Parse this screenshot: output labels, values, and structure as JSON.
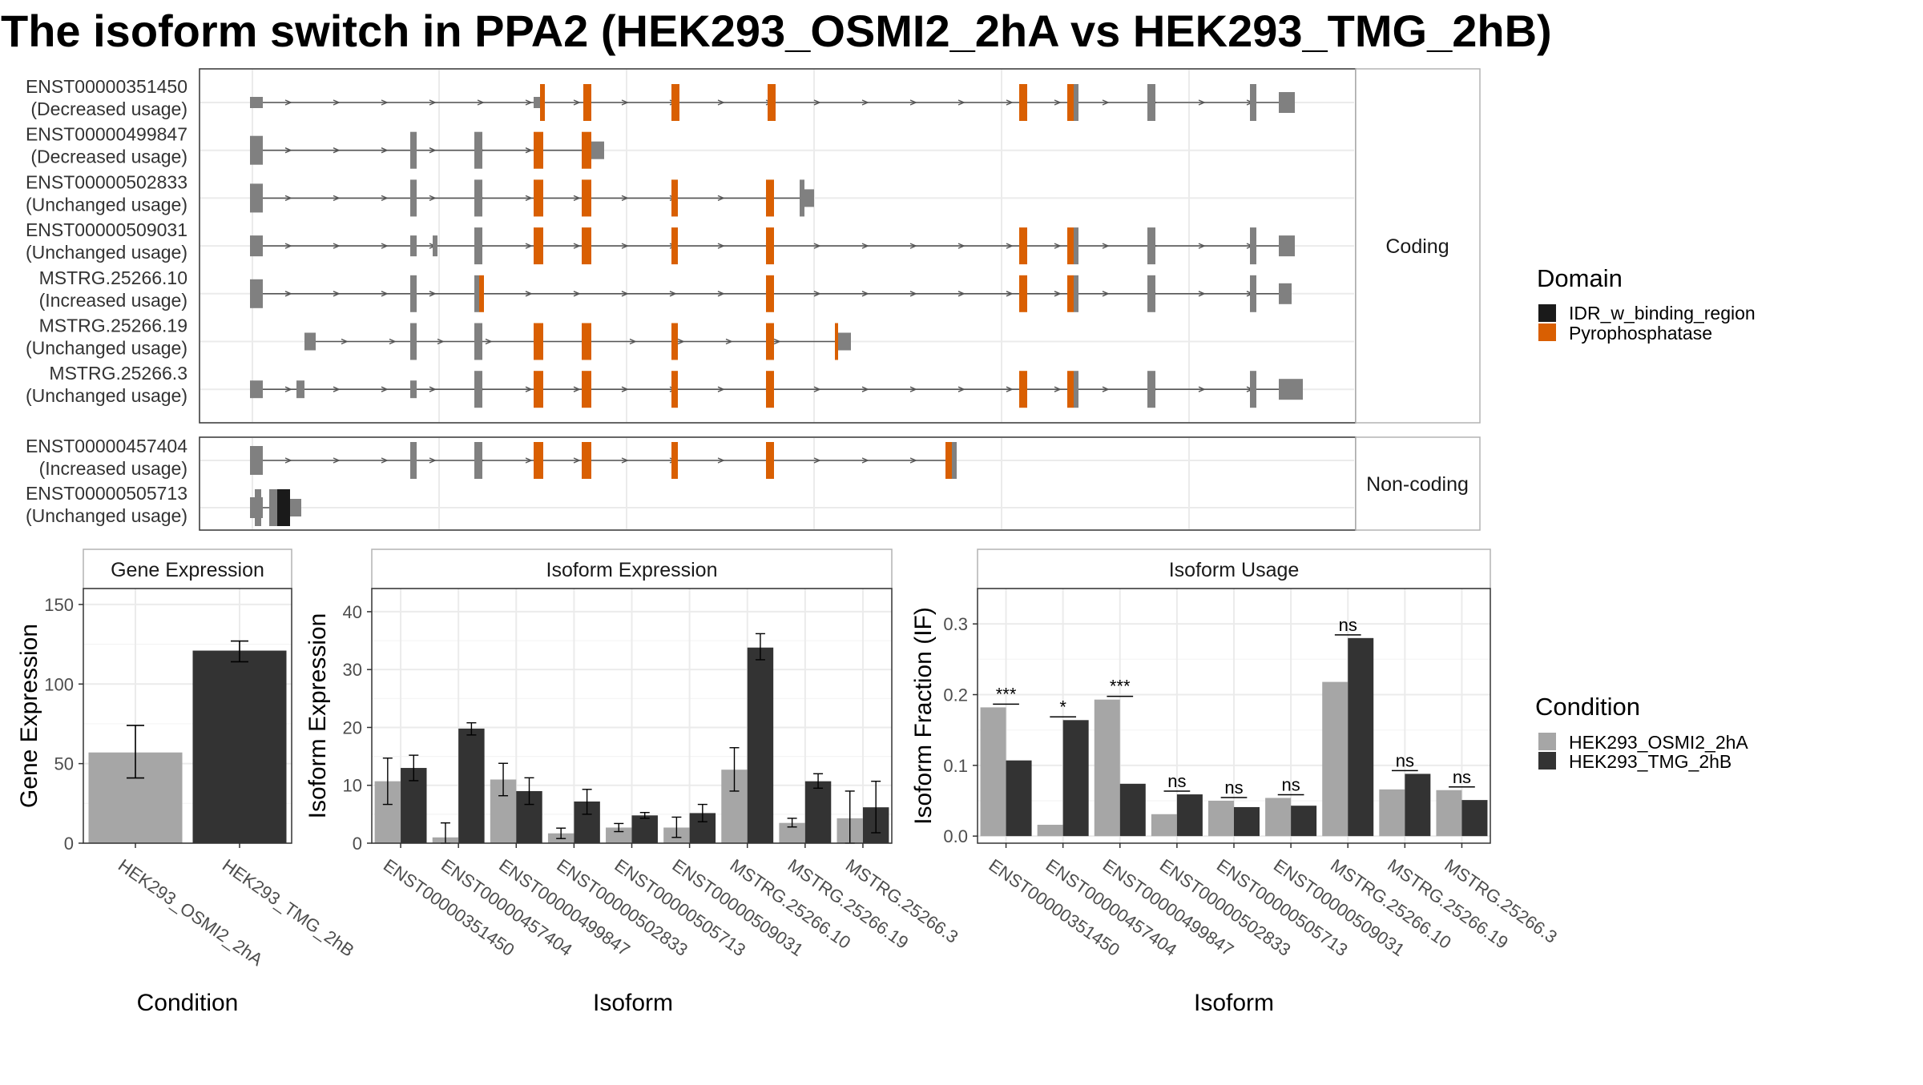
{
  "title": "The isoform switch in PPA2 (HEK293_OSMI2_2hA vs HEK293_TMG_2hB)",
  "colors": {
    "IDR_w_binding_region": "#1a1a1a",
    "Pyrophosphatase": "#d95f02",
    "intron": "#555555",
    "exon": "#808080",
    "condA": "#a6a6a6",
    "condB": "#333333"
  },
  "transcripts": {
    "coding_label": "Coding",
    "noncoding_label": "Non-coding",
    "coding": [
      {
        "id": "ENST00000351450",
        "usage": "(Decreased usage)"
      },
      {
        "id": "ENST00000499847",
        "usage": "(Decreased usage)"
      },
      {
        "id": "ENST00000502833",
        "usage": "(Unchanged usage)"
      },
      {
        "id": "ENST00000509031",
        "usage": "(Unchanged usage)"
      },
      {
        "id": "MSTRG.25266.10",
        "usage": "(Increased usage)"
      },
      {
        "id": "MSTRG.25266.19",
        "usage": "(Unchanged usage)"
      },
      {
        "id": "MSTRG.25266.3",
        "usage": "(Unchanged usage)"
      }
    ],
    "noncoding": [
      {
        "id": "ENST00000457404",
        "usage": "(Increased usage)"
      },
      {
        "id": "ENST00000505713",
        "usage": "(Unchanged usage)"
      }
    ]
  },
  "legend_domain": {
    "title": "Domain",
    "items": [
      "IDR_w_binding_region",
      "Pyrophosphatase"
    ]
  },
  "legend_condition": {
    "title": "Condition",
    "items": [
      "HEK293_OSMI2_2hA",
      "HEK293_TMG_2hB"
    ]
  },
  "chart_data": [
    {
      "type": "bar",
      "title": "Gene Expression",
      "xlabel": "Condition",
      "ylabel": "Gene Expression",
      "ylim": [
        0,
        160
      ],
      "yticks": [
        0,
        50,
        100,
        150
      ],
      "categories": [
        "HEK293_OSMI2_2hA",
        "HEK293_TMG_2hB"
      ],
      "values": [
        57,
        121
      ],
      "err_low": [
        41,
        114
      ],
      "err_high": [
        74,
        127
      ]
    },
    {
      "type": "bar",
      "title": "Isoform Expression",
      "xlabel": "Isoform",
      "ylabel": "Isoform Expression",
      "ylim": [
        0,
        44
      ],
      "yticks": [
        0,
        10,
        20,
        30,
        40
      ],
      "categories": [
        "ENST00000351450",
        "ENST00000457404",
        "ENST00000499847",
        "ENST00000502833",
        "ENST00000505713",
        "ENST00000509031",
        "MSTRG.25266.10",
        "MSTRG.25266.19",
        "MSTRG.25266.3"
      ],
      "series": [
        {
          "name": "HEK293_OSMI2_2hA",
          "values": [
            10.7,
            1.0,
            11.0,
            1.7,
            2.7,
            2.7,
            12.7,
            3.5,
            4.3
          ],
          "err_low": [
            6.7,
            0,
            8.2,
            0.8,
            2.0,
            1.0,
            9.0,
            2.8,
            0
          ],
          "err_high": [
            14.7,
            3.5,
            13.8,
            2.6,
            3.4,
            4.5,
            16.5,
            4.3,
            9.0
          ]
        },
        {
          "name": "HEK293_TMG_2hB",
          "values": [
            13.0,
            19.8,
            9.0,
            7.2,
            4.8,
            5.2,
            33.8,
            10.7,
            6.2
          ],
          "err_low": [
            10.8,
            18.7,
            6.7,
            5.0,
            4.3,
            3.7,
            31.7,
            9.5,
            1.8
          ],
          "err_high": [
            15.2,
            20.8,
            11.3,
            9.3,
            5.3,
            6.7,
            36.2,
            12.0,
            10.7
          ]
        }
      ]
    },
    {
      "type": "bar",
      "title": "Isoform Usage",
      "xlabel": "Isoform",
      "ylabel": "Isoform Fraction (IF)",
      "ylim": [
        -0.01,
        0.35
      ],
      "yticks": [
        0.0,
        0.1,
        0.2,
        0.3
      ],
      "ytick_labels": [
        "0.0",
        "0.1",
        "0.2",
        "0.3"
      ],
      "categories": [
        "ENST00000351450",
        "ENST00000457404",
        "ENST00000499847",
        "ENST00000502833",
        "ENST00000505713",
        "ENST00000509031",
        "MSTRG.25266.10",
        "MSTRG.25266.19",
        "MSTRG.25266.3"
      ],
      "series": [
        {
          "name": "HEK293_OSMI2_2hA",
          "values": [
            0.182,
            0.016,
            0.193,
            0.031,
            0.05,
            0.054,
            0.218,
            0.066,
            0.065
          ]
        },
        {
          "name": "HEK293_TMG_2hB",
          "values": [
            0.107,
            0.164,
            0.074,
            0.059,
            0.041,
            0.043,
            0.28,
            0.088,
            0.051
          ]
        }
      ],
      "significance": [
        "***",
        "*",
        "***",
        "ns",
        "ns",
        "ns",
        "ns",
        "ns",
        "ns"
      ]
    }
  ]
}
